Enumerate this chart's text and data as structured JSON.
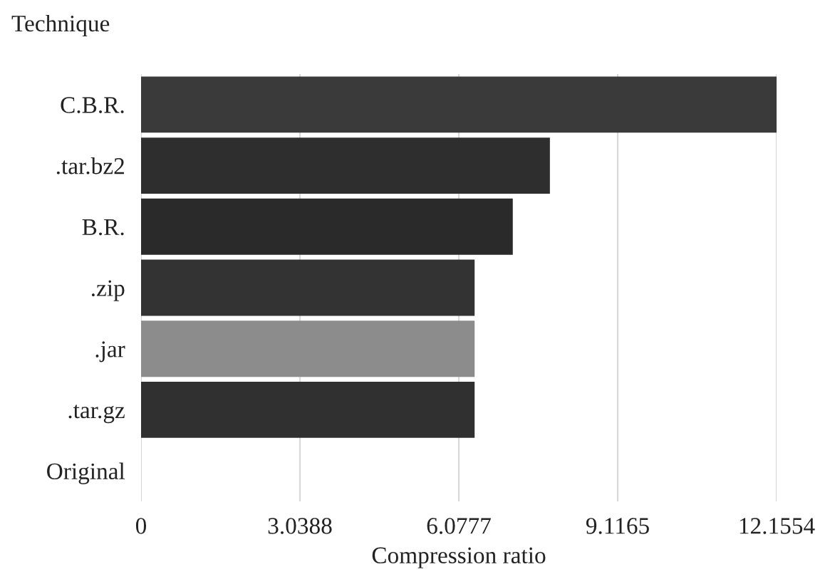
{
  "chart_data": {
    "type": "bar",
    "orientation": "horizontal",
    "ylabel": "Technique",
    "xlabel": "Compression ratio",
    "categories": [
      "C.B.R.",
      ".tar.bz2",
      "B.R.",
      ".zip",
      ".jar",
      ".tar.gz",
      "Original"
    ],
    "values": [
      12.1554,
      7.82,
      7.11,
      6.38,
      6.38,
      6.38,
      0
    ],
    "colors": [
      "#3a3a3a",
      "#2e2e2e",
      "#2a2a2a",
      "#333333",
      "#8c8c8c",
      "#303030",
      "#303030"
    ],
    "xlim": [
      0,
      12.1554
    ],
    "xticks": [
      0,
      3.0388,
      6.0777,
      9.1165,
      12.1554
    ],
    "grid": "x"
  }
}
